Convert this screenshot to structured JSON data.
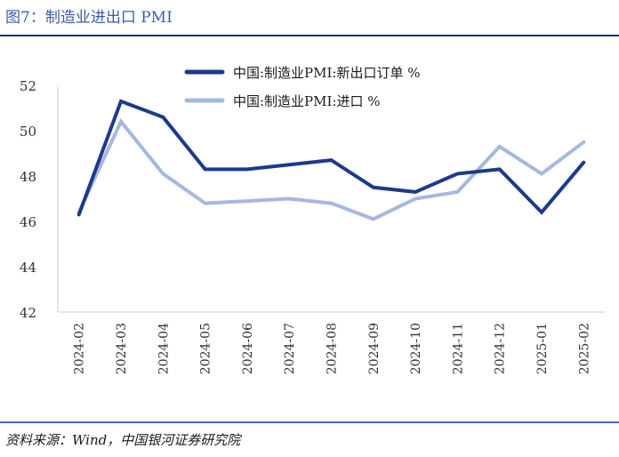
{
  "header": {
    "title": "图7：制造业进出口 PMI"
  },
  "footer": {
    "source": "资料来源：Wind，中国银河证券研究院"
  },
  "colors": {
    "series1": "#1c3a8c",
    "series2": "#a6b7e0",
    "axis": "#cfcfcf",
    "title": "#3a5ba8"
  },
  "chart_data": {
    "type": "line",
    "categories": [
      "2024-02",
      "2024-03",
      "2024-04",
      "2024-05",
      "2024-06",
      "2024-07",
      "2024-08",
      "2024-09",
      "2024-10",
      "2024-11",
      "2024-12",
      "2025-01",
      "2025-02"
    ],
    "series": [
      {
        "name": "中国:制造业PMI:新出口订单 %",
        "values": [
          46.3,
          51.3,
          50.6,
          48.3,
          48.3,
          48.5,
          48.7,
          47.5,
          47.3,
          48.1,
          48.3,
          46.4,
          48.6
        ]
      },
      {
        "name": "中国:制造业PMI:进口 %",
        "values": [
          46.4,
          50.4,
          48.1,
          46.8,
          46.9,
          47.0,
          46.8,
          46.1,
          47.0,
          47.3,
          49.3,
          48.1,
          49.5
        ]
      }
    ],
    "yticks": [
      "42",
      "44",
      "46",
      "48",
      "50",
      "52"
    ],
    "ylim": [
      42,
      52
    ],
    "grid": false,
    "legend": "top-center"
  }
}
